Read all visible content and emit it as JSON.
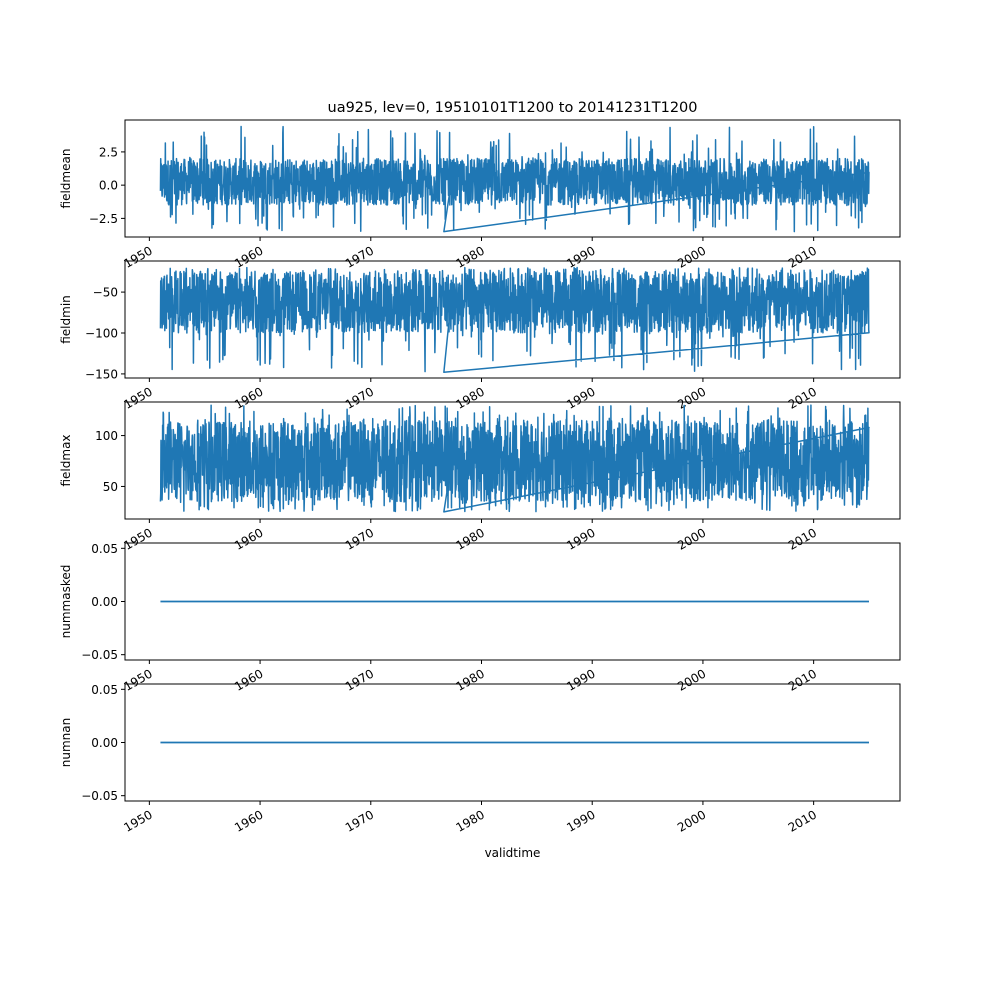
{
  "chart_data": {
    "type": "line",
    "title": "ua925, lev=0, 19510101T1200 to 20141231T1200",
    "xlabel": "validtime",
    "x_start": "1951-01-01",
    "x_end": "2014-12-31",
    "xlim": [
      1947.8,
      2017.8
    ],
    "x_ticks": [
      "1950",
      "1960",
      "1970",
      "1980",
      "1990",
      "2000",
      "2010"
    ],
    "line_color": "#1f77b4",
    "grid": false,
    "legend": "none",
    "panels": [
      {
        "ylabel": "fieldmean",
        "ylim": [
          -3.9,
          4.9
        ],
        "y_ticks": [
          "−2.5",
          "0.0",
          "2.5"
        ],
        "y_tick_values": [
          -2.5,
          0.0,
          2.5
        ],
        "series": [
          {
            "baseline": 0.1,
            "typical_low": -1.5,
            "typical_high": 2.0,
            "min": -3.5,
            "max": 4.5
          }
        ]
      },
      {
        "ylabel": "fieldmin",
        "ylim": [
          -155,
          -12
        ],
        "y_ticks": [
          "−150",
          "−100",
          "−50"
        ],
        "y_tick_values": [
          -150,
          -100,
          -50
        ],
        "series": [
          {
            "baseline": -62,
            "typical_low": -100,
            "typical_high": -25,
            "min": -148,
            "max": -20
          }
        ]
      },
      {
        "ylabel": "fieldmax",
        "ylim": [
          18,
          133
        ],
        "y_ticks": [
          "50",
          "100"
        ],
        "y_tick_values": [
          50,
          100
        ],
        "series": [
          {
            "baseline": 70,
            "typical_low": 35,
            "typical_high": 115,
            "min": 25,
            "max": 130
          }
        ]
      },
      {
        "ylabel": "nummasked",
        "ylim": [
          -0.055,
          0.055
        ],
        "y_ticks": [
          "−0.05",
          "0.00",
          "0.05"
        ],
        "y_tick_values": [
          -0.05,
          0.0,
          0.05
        ],
        "series": [
          {
            "constant": 0.0
          }
        ]
      },
      {
        "ylabel": "numnan",
        "ylim": [
          -0.055,
          0.055
        ],
        "y_ticks": [
          "−0.05",
          "0.00",
          "0.05"
        ],
        "y_tick_values": [
          -0.05,
          0.0,
          0.05
        ],
        "series": [
          {
            "constant": 0.0
          }
        ]
      }
    ]
  }
}
